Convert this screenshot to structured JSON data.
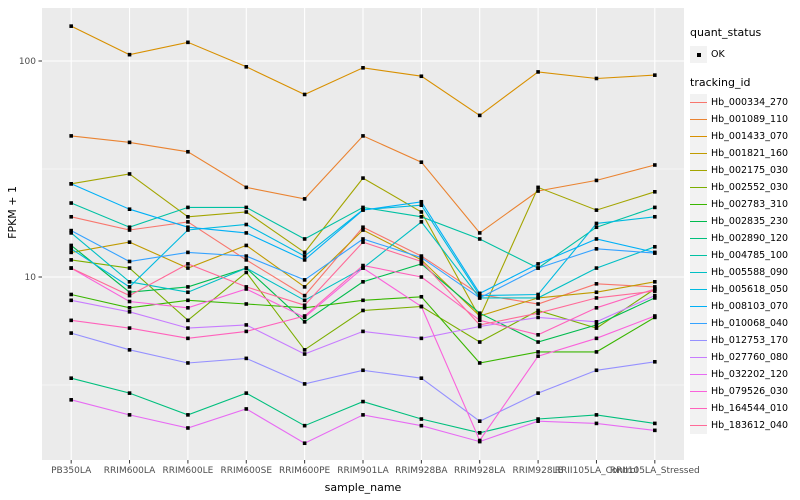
{
  "chart_data": {
    "type": "line",
    "title": "",
    "xlabel": "sample_name",
    "ylabel": "FPKM + 1",
    "y_scale": "log10",
    "ylim": [
      1.4,
      180
    ],
    "grid": true,
    "panel_bg": "#EBEBEB",
    "grid_color": "#FFFFFF",
    "axis_text_color": "#4D4D4D",
    "tick_color": "#333333",
    "point_color": "#000000",
    "point_shape": "square",
    "legend_position": "right",
    "y_ticks": [
      {
        "value": 100,
        "label": "100"
      },
      {
        "value": 10,
        "label": "10"
      }
    ],
    "y_minor": [
      31.62,
      3.162
    ],
    "categories": [
      "PB350LA",
      "RRIM600LA",
      "RRIM600LE",
      "RRIM600SE",
      "RRIM600PE",
      "RRIM901LA",
      "RRIM928BA",
      "RRIM928LA",
      "RRIM928LB",
      "RRII105LA_Control",
      "RRII105LA_Stressed"
    ],
    "legend": {
      "quant_status_title": "quant_status",
      "quant_status_items": [
        {
          "label": "OK",
          "marker": "black-point"
        }
      ],
      "tracking_id_title": "tracking_id"
    },
    "series": [
      {
        "name": "Hb_000334_270",
        "color": "#F8766D",
        "values": [
          19,
          16.5,
          18,
          12,
          8.2,
          17,
          12.5,
          8.3,
          7.5,
          9.3,
          9.0
        ]
      },
      {
        "name": "Hb_001089_110",
        "color": "#EA8331",
        "values": [
          45,
          42,
          38,
          26,
          23,
          45,
          34,
          16,
          25,
          28,
          33
        ]
      },
      {
        "name": "Hb_001433_070",
        "color": "#D89000",
        "values": [
          145,
          107,
          122,
          94,
          70,
          93,
          85,
          56,
          89,
          83,
          86
        ]
      },
      {
        "name": "Hb_001821_160",
        "color": "#C09B00",
        "values": [
          13,
          14.5,
          11,
          14,
          9,
          16.5,
          12,
          6.6,
          8,
          8.5,
          9.5
        ]
      },
      {
        "name": "Hb_002175_030",
        "color": "#A3A500",
        "values": [
          27,
          30,
          19,
          20,
          13,
          28.7,
          20,
          6.5,
          26,
          20.4,
          24.8
        ]
      },
      {
        "name": "Hb_002552_030",
        "color": "#7CAE00",
        "values": [
          12,
          11,
          6.3,
          10.5,
          4.6,
          7.0,
          7.3,
          5.0,
          7.0,
          5.8,
          8.8
        ]
      },
      {
        "name": "Hb_002783_310",
        "color": "#39B600",
        "values": [
          8.3,
          7.2,
          7.8,
          7.5,
          7.2,
          7.8,
          8.1,
          4.0,
          4.5,
          4.5,
          6.5
        ]
      },
      {
        "name": "Hb_002835_230",
        "color": "#00BB4E",
        "values": [
          14,
          8.5,
          9,
          11,
          6.2,
          9.5,
          11.5,
          6.8,
          5.0,
          6.0,
          8.0
        ]
      },
      {
        "name": "Hb_002890_120",
        "color": "#00BF7D",
        "values": [
          3.4,
          2.9,
          2.3,
          2.9,
          2.05,
          2.65,
          2.2,
          1.9,
          2.2,
          2.3,
          2.1
        ]
      },
      {
        "name": "Hb_004785_100",
        "color": "#00C1A3",
        "values": [
          22,
          17,
          21,
          21,
          15,
          21,
          19,
          15,
          11,
          17,
          21
        ]
      },
      {
        "name": "Hb_005588_090",
        "color": "#00BFC4",
        "values": [
          16,
          9.5,
          8.5,
          11,
          7.8,
          11,
          18,
          8.0,
          8.0,
          11,
          13.8
        ]
      },
      {
        "name": "Hb_005618_050",
        "color": "#00BAE0",
        "values": [
          13.5,
          9.0,
          16.5,
          17.5,
          12.5,
          20.5,
          21.5,
          8.2,
          8.3,
          17.7,
          19
        ]
      },
      {
        "name": "Hb_008103_070",
        "color": "#00B0F6",
        "values": [
          27,
          20.6,
          17,
          16,
          12,
          20.4,
          22.3,
          8.4,
          11.5,
          15,
          13
        ]
      },
      {
        "name": "Hb_010068_040",
        "color": "#35A2FF",
        "values": [
          16.4,
          11.8,
          13,
          12.5,
          9.7,
          15,
          12.3,
          8.0,
          11,
          13.5,
          12.9
        ]
      },
      {
        "name": "Hb_012753_170",
        "color": "#9590FF",
        "values": [
          5.5,
          4.6,
          4.0,
          4.2,
          3.2,
          3.7,
          3.4,
          2.15,
          2.9,
          3.7,
          4.05
        ]
      },
      {
        "name": "Hb_027760_080",
        "color": "#C77CFF",
        "values": [
          7.8,
          6.9,
          5.8,
          6.0,
          4.4,
          5.6,
          5.2,
          5.9,
          6.5,
          6.2,
          8.2
        ]
      },
      {
        "name": "Hb_032202_120",
        "color": "#E76BF3",
        "values": [
          2.7,
          2.3,
          2.0,
          2.45,
          1.7,
          2.3,
          2.05,
          1.73,
          2.15,
          2.1,
          1.95
        ]
      },
      {
        "name": "Hb_079526_030",
        "color": "#FA62DB",
        "values": [
          11,
          7.7,
          7.2,
          8.8,
          6.5,
          11,
          7.3,
          1.75,
          4.3,
          5.2,
          6.6
        ]
      },
      {
        "name": "Hb_164544_010",
        "color": "#FF62BC",
        "values": [
          6.3,
          5.8,
          5.2,
          5.6,
          6.6,
          11.3,
          10,
          6.3,
          5.4,
          7.2,
          8.8
        ]
      },
      {
        "name": "Hb_183612_040",
        "color": "#FF6A98",
        "values": [
          11,
          8.2,
          11.5,
          9.0,
          7.4,
          14.5,
          11.8,
          6.0,
          6.8,
          8.0,
          8.6
        ]
      }
    ]
  }
}
